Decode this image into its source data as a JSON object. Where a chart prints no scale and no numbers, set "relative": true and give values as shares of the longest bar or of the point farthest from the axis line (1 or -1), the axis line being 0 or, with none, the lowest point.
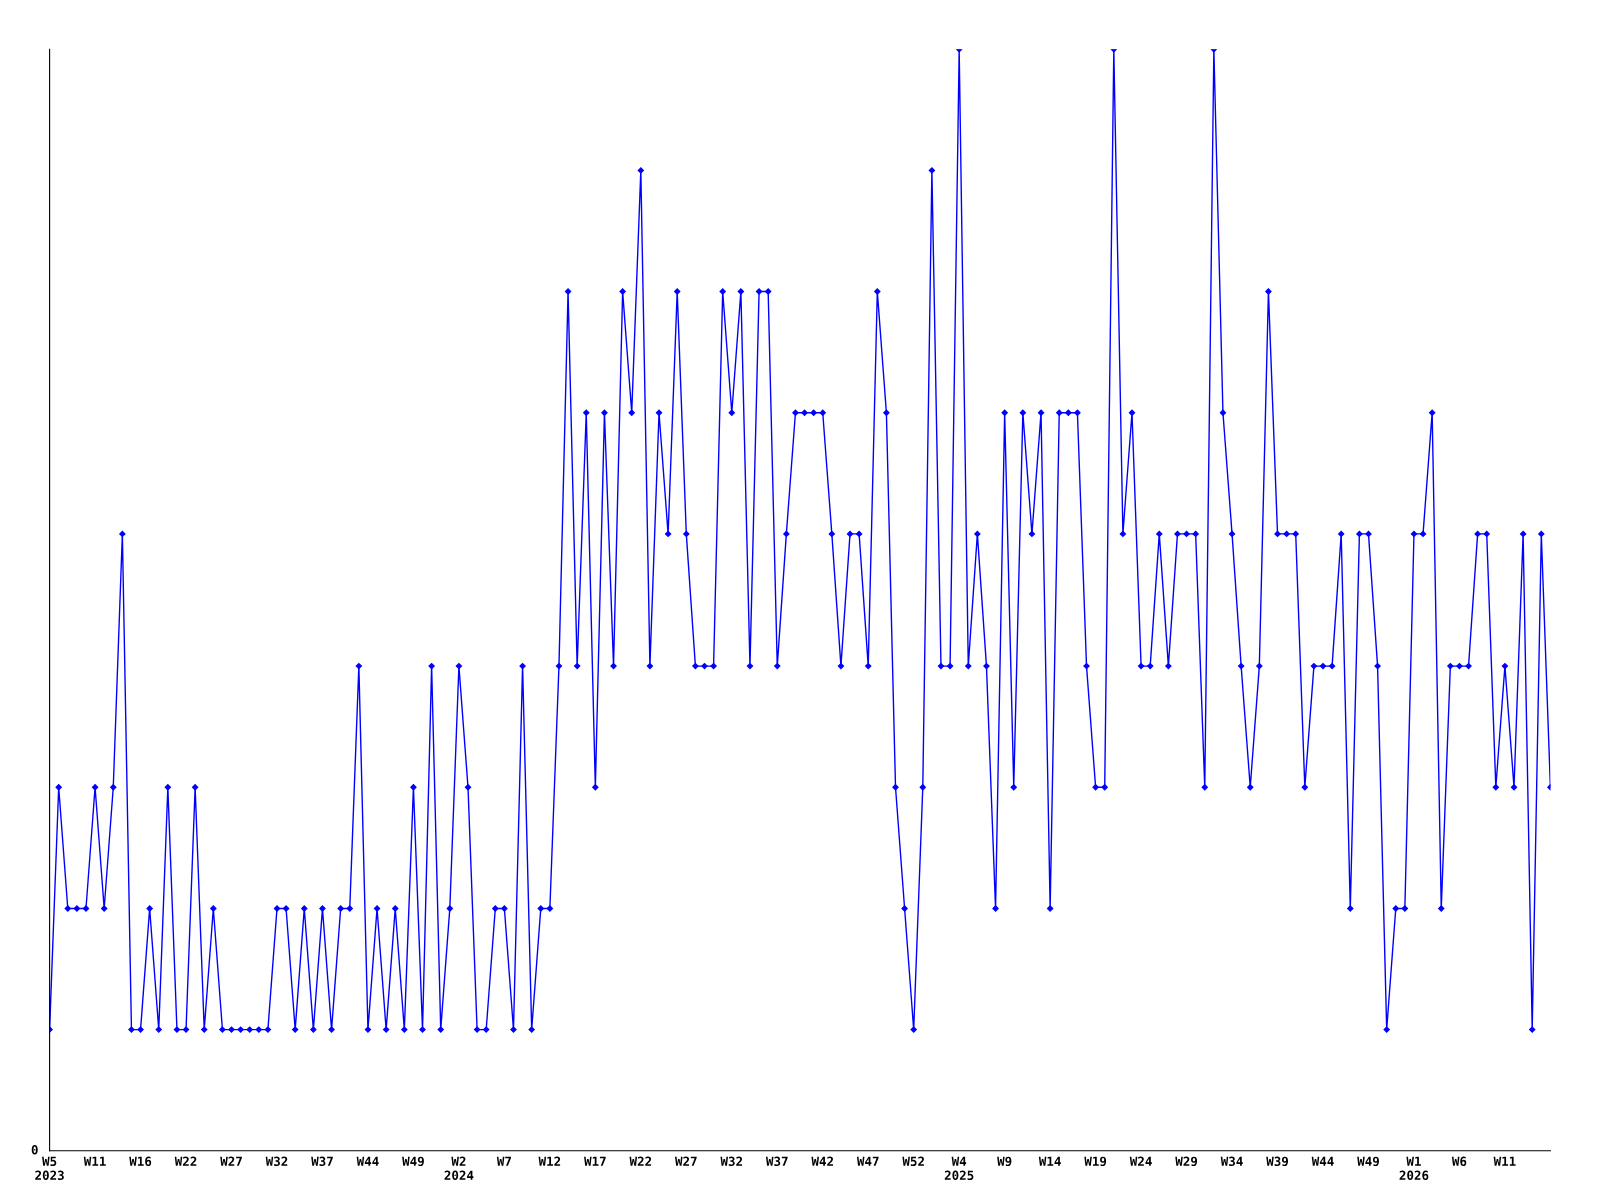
{
  "chart_data": {
    "type": "line",
    "relative": true,
    "annotations": [
      "0"
    ],
    "marker": "diamond",
    "line_style": "solid",
    "grid": false,
    "legend": false,
    "categories": [
      "W5\n2023",
      null,
      null,
      null,
      null,
      "W11",
      null,
      null,
      null,
      null,
      "W16",
      null,
      null,
      null,
      null,
      "W22",
      null,
      null,
      null,
      null,
      "W27",
      null,
      null,
      null,
      null,
      "W32",
      null,
      null,
      null,
      null,
      "W37",
      null,
      null,
      null,
      null,
      "W44",
      null,
      null,
      null,
      null,
      "W49",
      null,
      null,
      null,
      null,
      "W2\n2024",
      null,
      null,
      null,
      null,
      "W7",
      null,
      null,
      null,
      null,
      "W12",
      null,
      null,
      null,
      null,
      "W17",
      null,
      null,
      null,
      null,
      "W22",
      null,
      null,
      null,
      null,
      "W27",
      null,
      null,
      null,
      null,
      "W32",
      null,
      null,
      null,
      null,
      "W37",
      null,
      null,
      null,
      null,
      "W42",
      null,
      null,
      null,
      null,
      "W47",
      null,
      null,
      null,
      null,
      "W52",
      null,
      null,
      null,
      null,
      "W4\n2025",
      null,
      null,
      null,
      null,
      "W9",
      null,
      null,
      null,
      null,
      "W14",
      null,
      null,
      null,
      null,
      "W19",
      null,
      null,
      null,
      null,
      "W24",
      null,
      null,
      null,
      null,
      "W29",
      null,
      null,
      null,
      null,
      "W34",
      null,
      null,
      null,
      null,
      "W39",
      null,
      null,
      null,
      null,
      "W44",
      null,
      null,
      null,
      null,
      "W49",
      null,
      null,
      null,
      null,
      "W1\n2026",
      null,
      null,
      null,
      null,
      "W6",
      null,
      null,
      null,
      null,
      "W11",
      null,
      null,
      null,
      null,
      null
    ],
    "series": [
      {
        "color": "#0000ff",
        "values": [
          0.11,
          0.33,
          0.22,
          0.22,
          0.22,
          0.33,
          0.22,
          0.33,
          0.56,
          0.11,
          0.11,
          0.22,
          0.11,
          0.33,
          0.11,
          0.11,
          0.33,
          0.11,
          0.22,
          0.11,
          0.11,
          0.11,
          0.11,
          0.11,
          0.11,
          0.22,
          0.22,
          0.11,
          0.22,
          0.11,
          0.22,
          0.11,
          0.22,
          0.22,
          0.44,
          0.11,
          0.22,
          0.11,
          0.22,
          0.11,
          0.33,
          0.11,
          0.44,
          0.11,
          0.22,
          0.44,
          0.33,
          0.11,
          0.11,
          0.22,
          0.22,
          0.11,
          0.44,
          0.11,
          0.22,
          0.22,
          0.44,
          0.78,
          0.44,
          0.67,
          0.33,
          0.67,
          0.44,
          0.78,
          0.67,
          0.89,
          0.44,
          0.67,
          0.56,
          0.78,
          0.56,
          0.44,
          0.44,
          0.44,
          0.78,
          0.67,
          0.78,
          0.44,
          0.78,
          0.78,
          0.44,
          0.56,
          0.67,
          0.67,
          0.67,
          0.67,
          0.56,
          0.44,
          0.56,
          0.56,
          0.44,
          0.78,
          0.67,
          0.33,
          0.22,
          0.11,
          0.33,
          0.89,
          0.44,
          0.44,
          1,
          0.44,
          0.56,
          0.44,
          0.22,
          0.67,
          0.33,
          0.67,
          0.56,
          0.67,
          0.22,
          0.67,
          0.67,
          0.67,
          0.44,
          0.33,
          0.33,
          1,
          0.56,
          0.67,
          0.44,
          0.44,
          0.56,
          0.44,
          0.56,
          0.56,
          0.56,
          0.33,
          1,
          0.67,
          0.56,
          0.44,
          0.33,
          0.44,
          0.78,
          0.56,
          0.56,
          0.56,
          0.33,
          0.44,
          0.44,
          0.44,
          0.56,
          0.22,
          0.56,
          0.56,
          0.44,
          0.11,
          0.22,
          0.22,
          0.56,
          0.56,
          0.67,
          0.22,
          0.44,
          0.44,
          0.44,
          0.56,
          0.56,
          0.33,
          0.44,
          0.33,
          0.56,
          0.11,
          0.56,
          0.33
        ]
      }
    ]
  }
}
